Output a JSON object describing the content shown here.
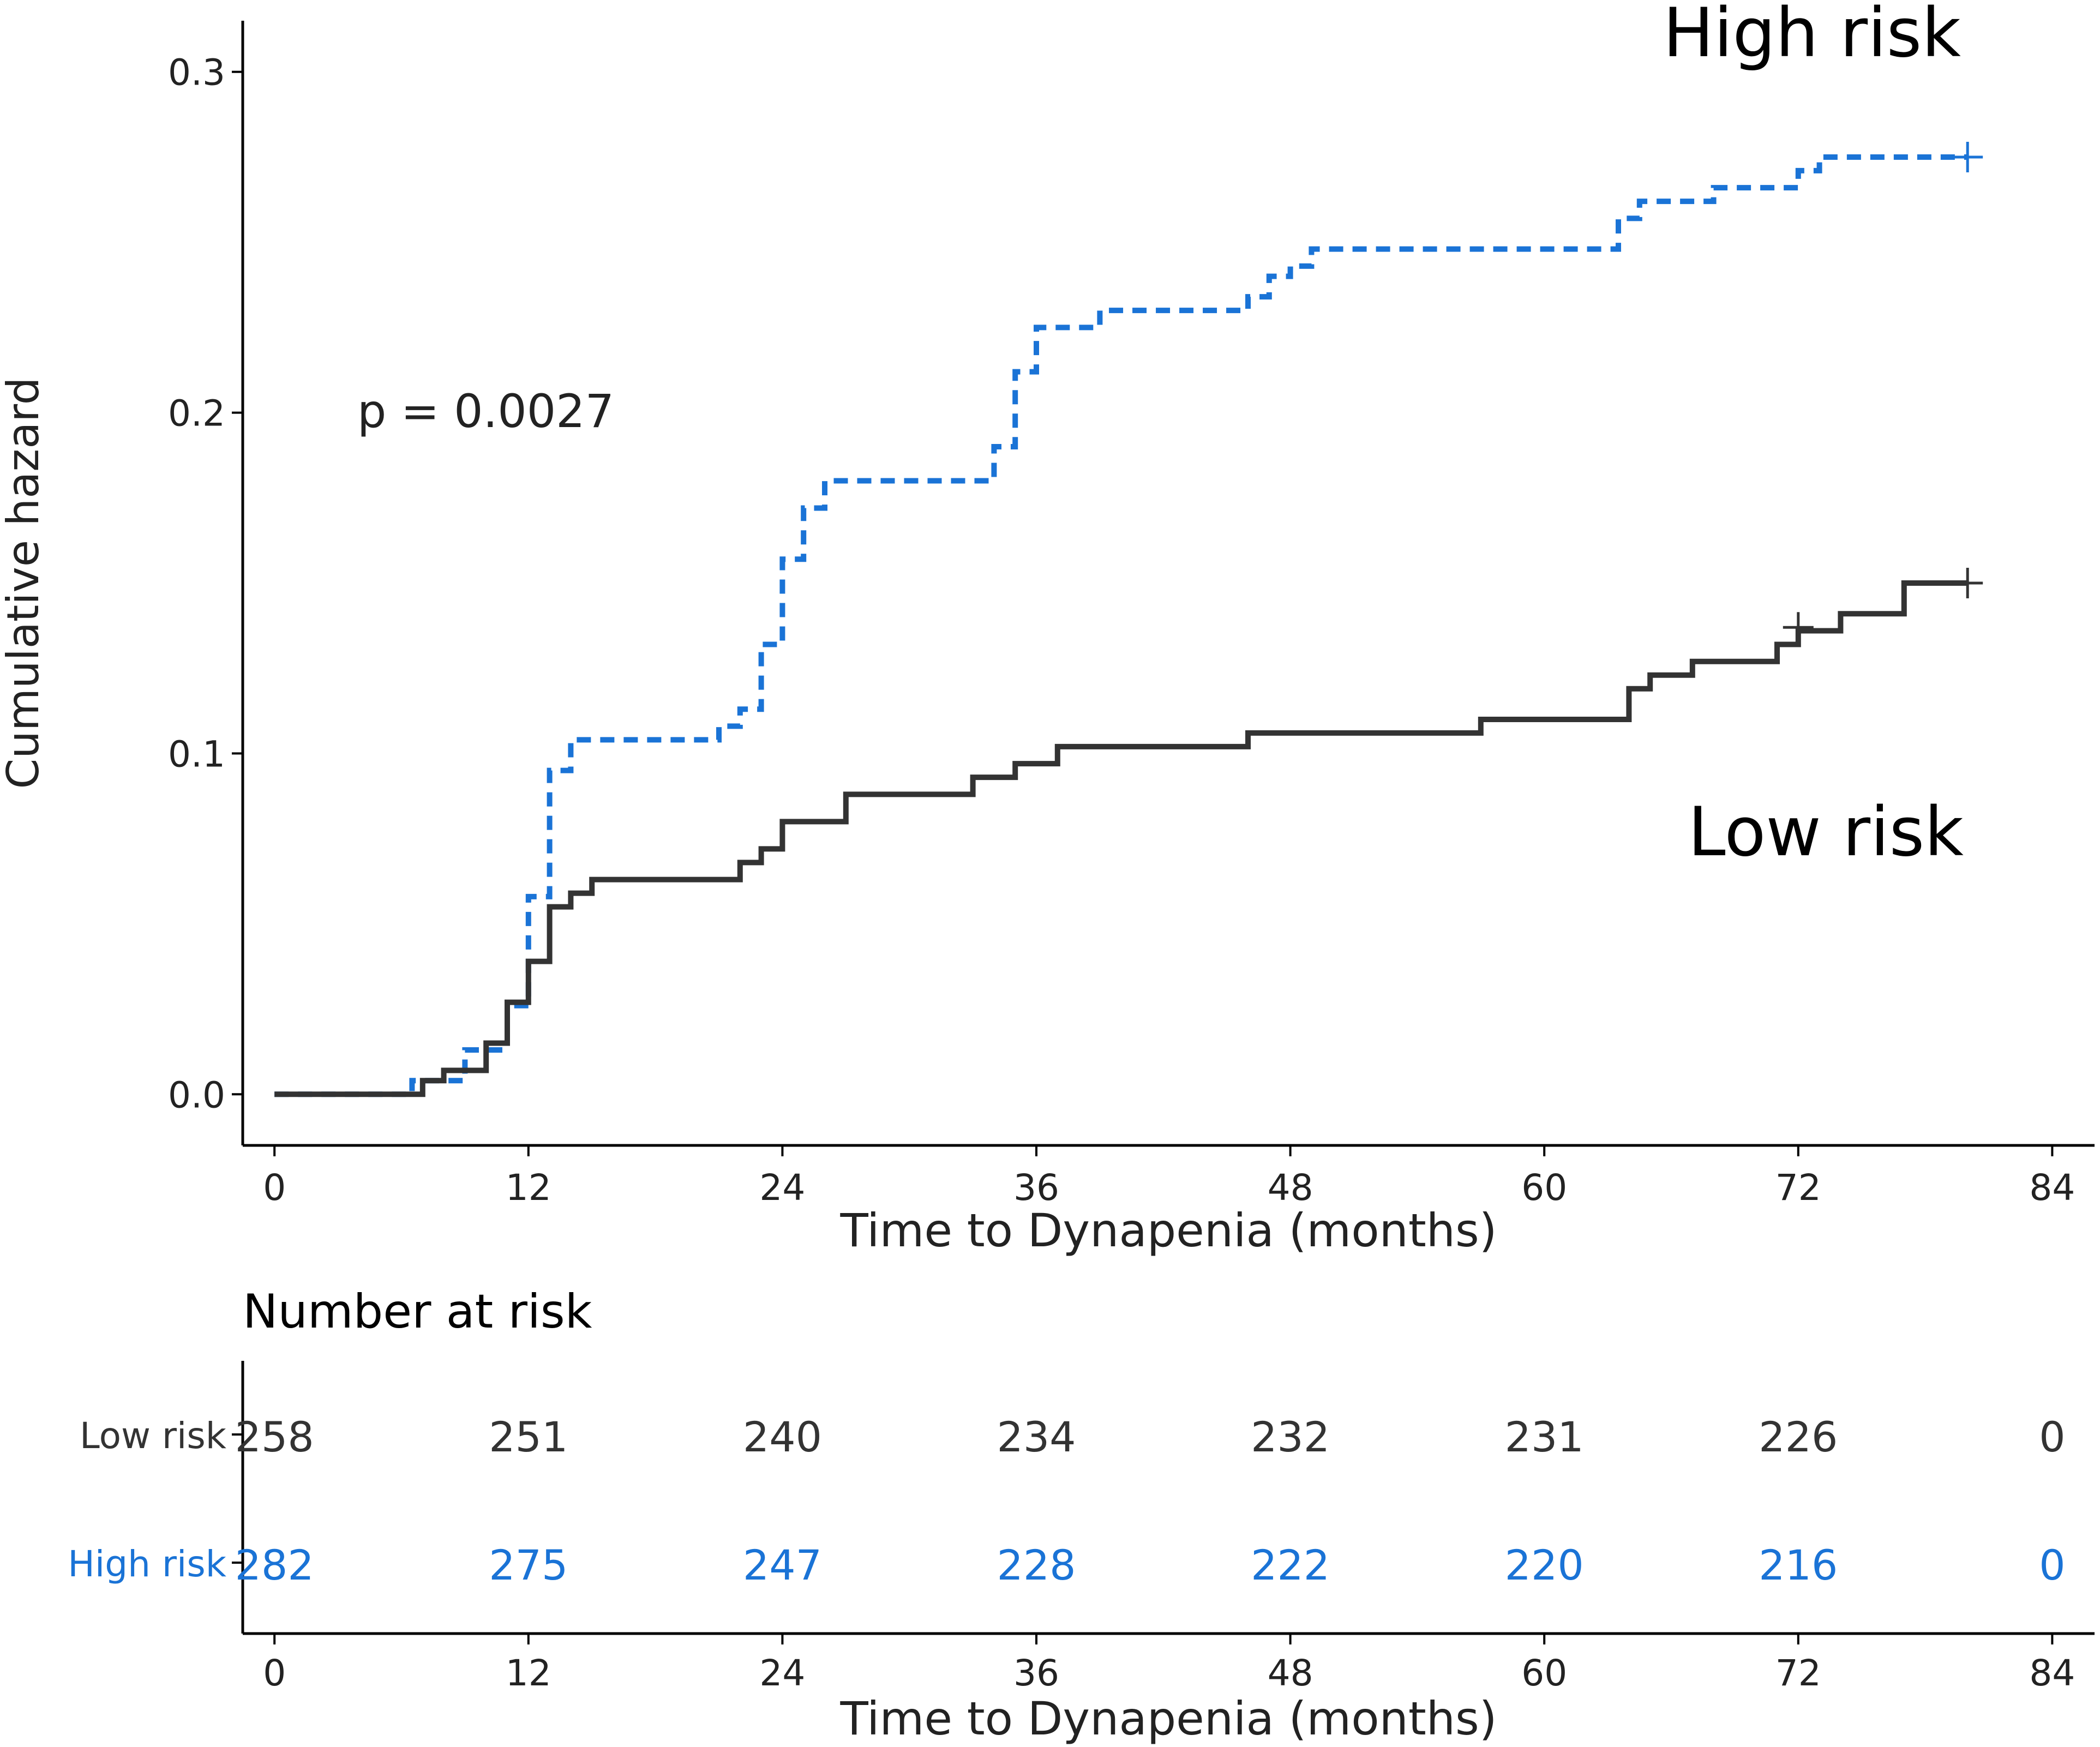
{
  "chart_data": {
    "type": "line",
    "subtype": "cumulative-hazard-step",
    "xlabel": "Time to Dynapenia (months)",
    "ylabel": "Cumulative hazard",
    "xlim": [
      -1.5,
      86
    ],
    "ylim": [
      -0.015,
      0.315
    ],
    "xticks": [
      "0",
      "12",
      "24",
      "36",
      "48",
      "60",
      "72",
      "84"
    ],
    "yticks": [
      "0.0",
      "0.1",
      "0.2",
      "0.3"
    ],
    "annotation": "p = 0.0027",
    "series": [
      {
        "name": "High risk",
        "label": "High risk",
        "color": "#1a73d6",
        "dash": "dashed",
        "steps": [
          [
            0,
            0
          ],
          [
            6.5,
            0.004
          ],
          [
            9,
            0.013
          ],
          [
            11,
            0.026
          ],
          [
            12,
            0.058
          ],
          [
            13,
            0.095
          ],
          [
            14,
            0.104
          ],
          [
            21,
            0.108
          ],
          [
            22,
            0.113
          ],
          [
            23,
            0.132
          ],
          [
            24,
            0.157
          ],
          [
            25,
            0.172
          ],
          [
            26,
            0.18
          ],
          [
            34,
            0.19
          ],
          [
            35,
            0.212
          ],
          [
            36,
            0.225
          ],
          [
            39,
            0.23
          ],
          [
            46,
            0.234
          ],
          [
            47,
            0.24
          ],
          [
            48,
            0.243
          ],
          [
            49,
            0.248
          ],
          [
            63.5,
            0.257
          ],
          [
            64.5,
            0.262
          ],
          [
            68,
            0.266
          ],
          [
            72,
            0.271
          ],
          [
            73,
            0.275
          ],
          [
            80,
            0.275
          ]
        ],
        "censor": [
          [
            80,
            0.275
          ]
        ]
      },
      {
        "name": "Low risk",
        "label": "Low risk",
        "color": "#333333",
        "dash": "solid",
        "steps": [
          [
            0,
            0
          ],
          [
            7,
            0.004
          ],
          [
            8,
            0.007
          ],
          [
            10,
            0.015
          ],
          [
            11,
            0.027
          ],
          [
            12,
            0.039
          ],
          [
            13,
            0.055
          ],
          [
            14,
            0.059
          ],
          [
            15,
            0.063
          ],
          [
            22,
            0.068
          ],
          [
            23,
            0.072
          ],
          [
            24,
            0.08
          ],
          [
            27,
            0.088
          ],
          [
            33,
            0.093
          ],
          [
            35,
            0.097
          ],
          [
            37,
            0.102
          ],
          [
            46,
            0.106
          ],
          [
            57,
            0.11
          ],
          [
            64,
            0.119
          ],
          [
            65,
            0.123
          ],
          [
            67,
            0.127
          ],
          [
            71,
            0.132
          ],
          [
            72,
            0.136
          ],
          [
            74,
            0.141
          ],
          [
            77,
            0.15
          ],
          [
            80,
            0.15
          ]
        ],
        "censor": [
          [
            72,
            0.137
          ],
          [
            80,
            0.15
          ]
        ]
      }
    ],
    "risk_table": {
      "title": "Number at risk",
      "xlabel": "Time to Dynapenia (months)",
      "times": [
        "0",
        "12",
        "24",
        "36",
        "48",
        "60",
        "72",
        "84"
      ],
      "rows": [
        {
          "label": "Low risk",
          "color": "#333333",
          "values": [
            "258",
            "251",
            "240",
            "234",
            "232",
            "231",
            "226",
            "0"
          ]
        },
        {
          "label": "High risk",
          "color": "#1a73d6",
          "values": [
            "282",
            "275",
            "247",
            "228",
            "222",
            "220",
            "216",
            "0"
          ]
        }
      ]
    }
  }
}
